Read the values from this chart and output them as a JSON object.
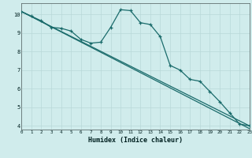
{
  "xlabel": "Humidex (Indice chaleur)",
  "bg_color": "#d0ecec",
  "grid_color": "#b8d8d8",
  "line_color": "#1a6b6b",
  "xlim": [
    0,
    23
  ],
  "ylim": [
    3.8,
    10.6
  ],
  "xticks": [
    0,
    1,
    2,
    3,
    4,
    5,
    6,
    7,
    8,
    9,
    10,
    11,
    12,
    13,
    14,
    15,
    16,
    17,
    18,
    19,
    20,
    21,
    22,
    23
  ],
  "yticks": [
    4,
    5,
    6,
    7,
    8,
    9,
    10
  ],
  "series": [
    {
      "x": [
        0,
        1,
        2,
        3,
        4,
        5,
        6,
        7,
        8,
        9,
        10,
        11,
        12,
        13,
        14,
        15,
        16,
        17,
        18,
        19,
        20,
        21,
        22,
        23
      ],
      "y": [
        10.15,
        9.9,
        9.65,
        9.3,
        9.25,
        9.1,
        8.65,
        8.45,
        8.5,
        9.3,
        10.25,
        10.2,
        9.55,
        9.45,
        8.8,
        7.25,
        7.0,
        6.5,
        6.4,
        5.85,
        5.3,
        4.7,
        4.1,
        4.0
      ],
      "has_marker": true
    },
    {
      "x": [
        0,
        23
      ],
      "y": [
        10.15,
        4.0
      ],
      "has_marker": false
    },
    {
      "x": [
        0,
        23
      ],
      "y": [
        10.15,
        3.85
      ],
      "has_marker": false
    }
  ]
}
